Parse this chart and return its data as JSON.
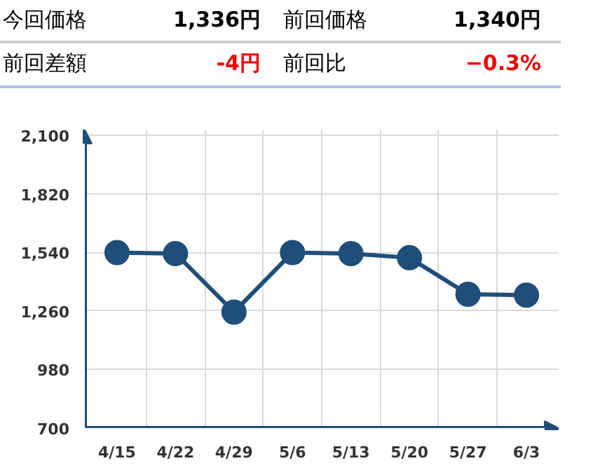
{
  "chart_data": {
    "type": "line",
    "annotations": [
      "今回価格",
      "1,336円",
      "前回価格",
      "1,340円",
      "前回差額",
      "-4円",
      "前回比",
      "−0.3%"
    ],
    "categories": [
      "4/15",
      "4/22",
      "4/29",
      "5/6",
      "5/13",
      "5/20",
      "5/27",
      "6/3"
    ],
    "series": [
      {
        "color": "#1f4e79",
        "values": [
          1540,
          1535,
          1255,
          1540,
          1535,
          1515,
          1340,
          1336
        ]
      }
    ],
    "ylim": [
      700,
      2100
    ],
    "yticks": [
      {
        "value": 700,
        "label": "700"
      },
      {
        "value": 980,
        "label": "980"
      },
      {
        "value": 1260,
        "label": "1,260"
      },
      {
        "value": 1540,
        "label": "1,540"
      },
      {
        "value": 1820,
        "label": "1,820"
      },
      {
        "value": 2100,
        "label": "2,100"
      }
    ],
    "grid": true,
    "marker": "circle",
    "line_style": "solid"
  }
}
